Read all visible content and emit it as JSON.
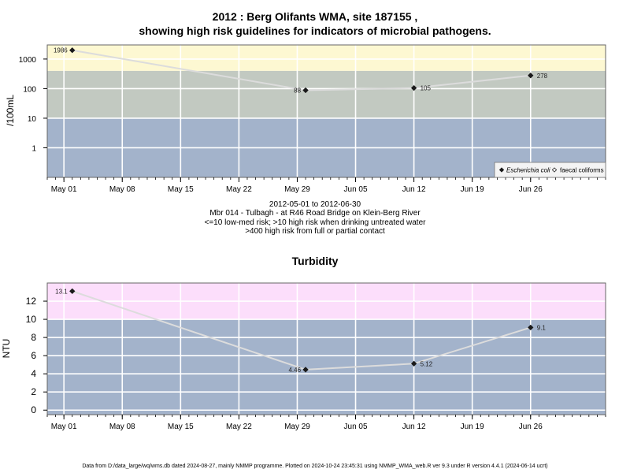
{
  "header": {
    "title_line1": "2012 : Berg Olifants WMA, site 187155 ,",
    "title_line2": "showing high risk guidelines for indicators of microbial pathogens."
  },
  "captions": {
    "line1": "2012-05-01 to 2012-06-30",
    "line2": "Mbr 014 - Tulbagh - at R46 Road Bridge on Klein-Berg River",
    "line3": "<=10 low-med risk; >10 high risk when drinking untreated water",
    "line4": ">400 high risk from full or partial contact"
  },
  "footer": {
    "text": "Data from D:/data_large/wq/wms.db dated 2024-08-27, mainly NMMP programme. Plotted on 2024-10-24 23:45:31 using NMMP_WMA_web.R ver 9.3 under R version 4.4.1 (2024-06-14 ucrt)"
  },
  "colors": {
    "band_low": "#a3b3cb",
    "band_mid": "#c2c9c1",
    "band_high_microbial": "#fdf8d2",
    "band_high_turbidity": "#fcdefb",
    "grid": "#ffffff",
    "series_line": "#dcdcdc",
    "point": "#1a1a1a"
  },
  "chart_data": [
    {
      "type": "line",
      "title": "",
      "ylabel": "/100mL",
      "yscale": "log",
      "ylim": [
        0.1,
        3000
      ],
      "yticks": [
        1,
        10,
        100,
        1000
      ],
      "ytick_labels": [
        "1",
        "10",
        "100",
        "1000"
      ],
      "x_tick_labels": [
        "May 01",
        "May 08",
        "May 15",
        "May 22",
        "May 29",
        "Jun 05",
        "Jun 12",
        "Jun 19",
        "Jun 26"
      ],
      "x_tick_dates": [
        "2012-05-01",
        "2012-05-08",
        "2012-05-15",
        "2012-05-22",
        "2012-05-29",
        "2012-06-05",
        "2012-06-12",
        "2012-06-19",
        "2012-06-26"
      ],
      "xlim": [
        "2012-04-29",
        "2012-07-05"
      ],
      "bands": [
        {
          "from": 0.1,
          "to": 10,
          "color": "#a3b3cb"
        },
        {
          "from": 10,
          "to": 400,
          "color": "#c2c9c1"
        },
        {
          "from": 400,
          "to": 3000,
          "color": "#fdf8d2"
        }
      ],
      "grid": true,
      "legend_position": "bottom-right",
      "series": [
        {
          "name": "Escherichia coli",
          "marker": "diamond",
          "x": [
            "2012-05-02",
            "2012-05-30",
            "2012-06-12",
            "2012-06-26"
          ],
          "y": [
            1986,
            88,
            105,
            278
          ],
          "labels": [
            "1986",
            "88",
            "105",
            "278"
          ]
        },
        {
          "name": "faecal coliforms",
          "marker": "open-diamond",
          "x": [],
          "y": [],
          "labels": []
        }
      ]
    },
    {
      "type": "line",
      "title": "Turbidity",
      "ylabel": "NTU",
      "yscale": "linear",
      "ylim": [
        -0.5,
        14
      ],
      "yticks": [
        0,
        2,
        4,
        6,
        8,
        10,
        12
      ],
      "ytick_labels": [
        "0",
        "2",
        "4",
        "6",
        "8",
        "10",
        "12"
      ],
      "x_tick_labels": [
        "May 01",
        "May 08",
        "May 15",
        "May 22",
        "May 29",
        "Jun 05",
        "Jun 12",
        "Jun 19",
        "Jun 26"
      ],
      "x_tick_dates": [
        "2012-05-01",
        "2012-05-08",
        "2012-05-15",
        "2012-05-22",
        "2012-05-29",
        "2012-06-05",
        "2012-06-12",
        "2012-06-19",
        "2012-06-26"
      ],
      "xlim": [
        "2012-04-29",
        "2012-07-05"
      ],
      "bands": [
        {
          "from": -0.5,
          "to": 10,
          "color": "#a3b3cb"
        },
        {
          "from": 10,
          "to": 14,
          "color": "#fcdefb"
        }
      ],
      "grid": true,
      "series": [
        {
          "name": "",
          "marker": "diamond",
          "x": [
            "2012-05-02",
            "2012-05-30",
            "2012-06-12",
            "2012-06-26"
          ],
          "y": [
            13.1,
            4.46,
            5.12,
            9.1
          ],
          "labels": [
            "13.1",
            "4.46",
            "5.12",
            "9.1"
          ]
        }
      ]
    }
  ]
}
